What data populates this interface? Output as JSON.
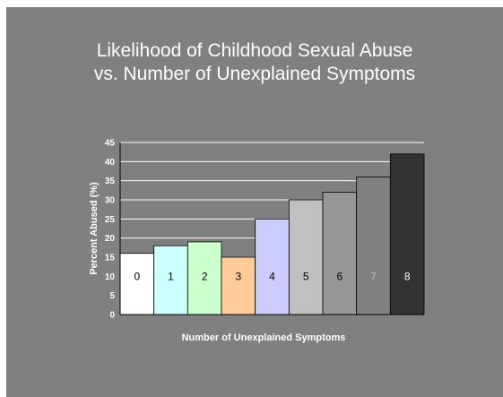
{
  "chart_data": {
    "type": "bar",
    "title_line1": "Likelihood of Childhood Sexual Abuse",
    "title_line2": "vs. Number of Unexplained Symptoms",
    "xlabel": "Number of Unexplained Symptoms",
    "ylabel": "Percent Abused (%)",
    "ylim": [
      0,
      45
    ],
    "yticks": [
      "0",
      "5",
      "10",
      "15",
      "20",
      "25",
      "30",
      "35",
      "40",
      "45"
    ],
    "grid": "horizontal",
    "legend": "none",
    "categories": [
      "0",
      "1",
      "2",
      "3",
      "4",
      "5",
      "6",
      "7",
      "8"
    ],
    "values": [
      16,
      18,
      19,
      15,
      25,
      30,
      32,
      36,
      42
    ],
    "bar_colors": [
      "#ffffff",
      "#ccffff",
      "#ccffcc",
      "#ffcc99",
      "#ccccff",
      "#c0c0c0",
      "#969696",
      "#808080",
      "#333333"
    ],
    "label_colors": [
      "#000000",
      "#000000",
      "#000000",
      "#000000",
      "#000000",
      "#000000",
      "#000000",
      "#c0c0c0",
      "#ffffff"
    ]
  }
}
